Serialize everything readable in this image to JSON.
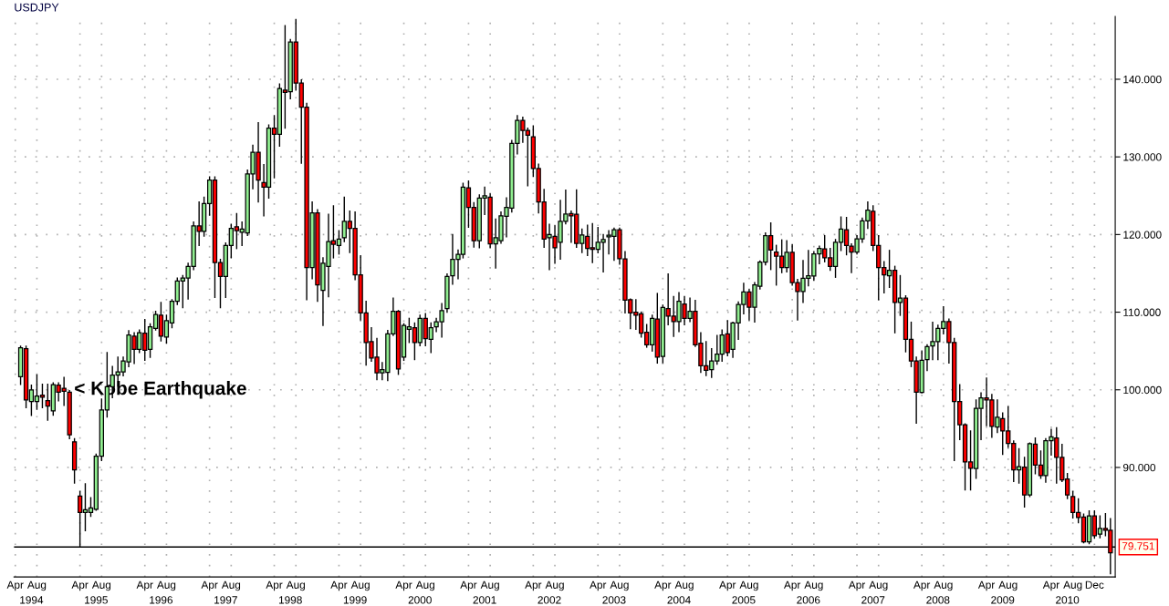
{
  "chart_data": {
    "type": "candlestick",
    "title": "USDJPY",
    "xlim": [
      "1994-03-25",
      "2011-03-28"
    ],
    "x2lim": [
      "1994-03-25",
      "2011-03-28"
    ],
    "ylim": [
      75.9,
      148.1
    ],
    "yticks": [
      {
        "value": 90,
        "label": "90.000"
      },
      {
        "value": 100,
        "label": "100.000"
      },
      {
        "value": 110,
        "label": "110.000"
      },
      {
        "value": 120,
        "label": "120.000"
      },
      {
        "value": 130,
        "label": "130.000"
      },
      {
        "value": 140,
        "label": "140.000"
      }
    ],
    "xticks": [
      {
        "value": "1994-04",
        "label": "Apr"
      },
      {
        "value": "1994-08",
        "label": "Aug"
      },
      {
        "value": "1995-04",
        "label": "Apr"
      },
      {
        "value": "1995-08",
        "label": "Aug"
      },
      {
        "value": "1996-04",
        "label": "Apr"
      },
      {
        "value": "1996-08",
        "label": "Aug"
      },
      {
        "value": "1997-04",
        "label": "Apr"
      },
      {
        "value": "1997-08",
        "label": "Aug"
      },
      {
        "value": "1998-04",
        "label": "Apr"
      },
      {
        "value": "1998-08",
        "label": "Aug"
      },
      {
        "value": "1999-04",
        "label": "Apr"
      },
      {
        "value": "1999-08",
        "label": "Aug"
      },
      {
        "value": "2000-04",
        "label": "Apr"
      },
      {
        "value": "2000-08",
        "label": "Aug"
      },
      {
        "value": "2001-04",
        "label": "Apr"
      },
      {
        "value": "2001-08",
        "label": "Aug"
      },
      {
        "value": "2002-04",
        "label": "Apr"
      },
      {
        "value": "2002-08",
        "label": "Aug"
      },
      {
        "value": "2003-04",
        "label": "Apr"
      },
      {
        "value": "2003-08",
        "label": "Aug"
      },
      {
        "value": "2004-04",
        "label": "Apr"
      },
      {
        "value": "2004-08",
        "label": "Aug"
      },
      {
        "value": "2005-04",
        "label": "Apr"
      },
      {
        "value": "2005-08",
        "label": "Aug"
      },
      {
        "value": "2006-04",
        "label": "Apr"
      },
      {
        "value": "2006-08",
        "label": "Aug"
      },
      {
        "value": "2007-04",
        "label": "Apr"
      },
      {
        "value": "2007-08",
        "label": "Aug"
      },
      {
        "value": "2008-04",
        "label": "Apr"
      },
      {
        "value": "2008-08",
        "label": "Aug"
      },
      {
        "value": "2009-04",
        "label": "Apr"
      },
      {
        "value": "2009-08",
        "label": "Aug"
      },
      {
        "value": "2010-04",
        "label": "Apr"
      },
      {
        "value": "2010-08",
        "label": "Aug"
      },
      {
        "value": "2010-12",
        "label": "Dec"
      }
    ],
    "x2ticks": [
      {
        "value": "1994-07",
        "label": "1994"
      },
      {
        "value": "1995-07",
        "label": "1995"
      },
      {
        "value": "1996-07",
        "label": "1996"
      },
      {
        "value": "1997-07",
        "label": "1997"
      },
      {
        "value": "1998-07",
        "label": "1998"
      },
      {
        "value": "1999-07",
        "label": "1999"
      },
      {
        "value": "2000-07",
        "label": "2000"
      },
      {
        "value": "2001-07",
        "label": "2001"
      },
      {
        "value": "2002-07",
        "label": "2002"
      },
      {
        "value": "2003-07",
        "label": "2003"
      },
      {
        "value": "2004-07",
        "label": "2004"
      },
      {
        "value": "2005-07",
        "label": "2005"
      },
      {
        "value": "2006-07",
        "label": "2006"
      },
      {
        "value": "2007-07",
        "label": "2007"
      },
      {
        "value": "2008-07",
        "label": "2008"
      },
      {
        "value": "2009-07",
        "label": "2009"
      },
      {
        "value": "2010-07",
        "label": "2010"
      }
    ],
    "grid": true,
    "ref_lines": [
      {
        "axis": "y",
        "value": 79.751,
        "label": "79.751",
        "color": "#000000"
      }
    ],
    "annotations": [
      {
        "text": "< Kobe Earthquake",
        "x": "1995-01",
        "y": 100
      }
    ],
    "series": [
      {
        "color": "#90ee90",
        "x": [
          "1994-05",
          "1994-07",
          "1994-08",
          "1994-11",
          "1995-05",
          "1995-06",
          "1995-07",
          "1995-08",
          "1995-09",
          "1995-10",
          "1995-11",
          "1995-12",
          "1996-01",
          "1996-03",
          "1996-05",
          "1996-06",
          "1996-08",
          "1996-09",
          "1996-10",
          "1996-11",
          "1996-12",
          "1997-01",
          "1997-03",
          "1997-04",
          "1997-07",
          "1997-08",
          "1997-10",
          "1997-11",
          "1997-12",
          "1998-03",
          "1998-05",
          "1998-07",
          "1998-11",
          "1999-01",
          "1999-02",
          "1999-04",
          "1999-05",
          "1999-12",
          "2000-01",
          "2000-02",
          "2000-04",
          "2000-05",
          "2000-07",
          "2000-09",
          "2000-10",
          "2000-11",
          "2000-12",
          "2001-01",
          "2001-02",
          "2001-03",
          "2001-06",
          "2001-07",
          "2001-09",
          "2001-10",
          "2001-11",
          "2001-12",
          "2002-01",
          "2002-07",
          "2002-09",
          "2002-10",
          "2003-01",
          "2003-04",
          "2003-05",
          "2003-06",
          "2003-07",
          "2004-02",
          "2004-04",
          "2004-07",
          "2004-09",
          "2005-01",
          "2005-02",
          "2005-03",
          "2005-05",
          "2005-06",
          "2005-07",
          "2005-09",
          "2005-10",
          "2005-11",
          "2006-03",
          "2006-06",
          "2006-07",
          "2006-08",
          "2006-09",
          "2006-12",
          "2007-01",
          "2007-04",
          "2007-05",
          "2007-06",
          "2007-10",
          "2007-12",
          "2008-04",
          "2008-05",
          "2008-06",
          "2008-07",
          "2008-08",
          "2009-02",
          "2009-03",
          "2009-06",
          "2009-10",
          "2009-12",
          "2010-03",
          "2010-04",
          "2010-11",
          "2011-01"
        ],
        "ohlc": [
          [
            101.7,
            105.6,
            100.7,
            105.4
          ],
          [
            98.5,
            100.6,
            96.7,
            100.0
          ],
          [
            98.5,
            101.9,
            97.5,
            99.2
          ],
          [
            97.3,
            100.9,
            96.75,
            100.65
          ],
          [
            84.2,
            87.9,
            81.85,
            84.55
          ],
          [
            84.2,
            86.1,
            83.7,
            84.8
          ],
          [
            84.6,
            91.7,
            84.5,
            91.45
          ],
          [
            91.45,
            98.8,
            90.9,
            97.4
          ],
          [
            97.4,
            104.8,
            96.5,
            100.4
          ],
          [
            100.4,
            103.0,
            99.0,
            101.9
          ],
          [
            101.9,
            104.2,
            100.5,
            102.3
          ],
          [
            102.3,
            104.2,
            101.8,
            103.7
          ],
          [
            103.6,
            107.6,
            103.0,
            107.05
          ],
          [
            105.2,
            107.7,
            104.8,
            107.35
          ],
          [
            105.2,
            108.5,
            104.2,
            108.1
          ],
          [
            107.9,
            110.1,
            107.7,
            109.7
          ],
          [
            106.8,
            109.6,
            106.0,
            108.9
          ],
          [
            108.6,
            111.6,
            108.0,
            111.4
          ],
          [
            111.4,
            114.4,
            111.0,
            114.0
          ],
          [
            114.0,
            114.7,
            110.6,
            114.4
          ],
          [
            114.4,
            116.3,
            111.7,
            115.9
          ],
          [
            115.9,
            121.6,
            115.5,
            121.1
          ],
          [
            120.4,
            124.8,
            119.8,
            124.0
          ],
          [
            124.0,
            127.4,
            122.5,
            127.0
          ],
          [
            114.6,
            118.9,
            111.9,
            118.6
          ],
          [
            118.6,
            121.3,
            117.0,
            120.8
          ],
          [
            120.3,
            121.6,
            118.6,
            120.7
          ],
          [
            120.2,
            128.3,
            119.9,
            127.8
          ],
          [
            127.8,
            131.5,
            125.9,
            130.6
          ],
          [
            126.1,
            134.1,
            124.7,
            133.7
          ],
          [
            132.9,
            139.4,
            131.4,
            138.8
          ],
          [
            138.4,
            145.1,
            137.5,
            144.8
          ],
          [
            115.75,
            124.2,
            114.3,
            122.8
          ],
          [
            112.8,
            117.0,
            108.3,
            116.3
          ],
          [
            115.9,
            122.6,
            112.0,
            119.1
          ],
          [
            118.6,
            120.5,
            117.5,
            119.4
          ],
          [
            119.6,
            124.8,
            119.1,
            121.7
          ],
          [
            102.2,
            103.5,
            101.3,
            102.6
          ],
          [
            102.25,
            107.65,
            101.2,
            107.2
          ],
          [
            107.2,
            111.8,
            107.0,
            110.1
          ],
          [
            104.2,
            108.5,
            103.8,
            108.3
          ],
          [
            107.8,
            109.2,
            106.1,
            108.1
          ],
          [
            106.1,
            109.6,
            105.7,
            109.2
          ],
          [
            106.5,
            108.6,
            104.8,
            108.0
          ],
          [
            108.1,
            109.2,
            107.5,
            108.75
          ],
          [
            108.75,
            111.1,
            106.8,
            110.2
          ],
          [
            110.45,
            114.9,
            110.0,
            114.6
          ],
          [
            114.7,
            120.0,
            113.6,
            116.8
          ],
          [
            116.8,
            118.0,
            114.3,
            117.45
          ],
          [
            117.45,
            126.6,
            117.0,
            126.1
          ],
          [
            119.2,
            125.1,
            118.3,
            124.7
          ],
          [
            124.7,
            126.1,
            122.6,
            125.0
          ],
          [
            118.8,
            122.0,
            115.7,
            119.6
          ],
          [
            119.2,
            122.9,
            118.9,
            122.4
          ],
          [
            122.35,
            124.7,
            119.7,
            123.5
          ],
          [
            123.4,
            132.1,
            122.9,
            131.75
          ],
          [
            131.75,
            135.3,
            130.4,
            134.7
          ],
          [
            119.6,
            121.3,
            115.5,
            120.0
          ],
          [
            119.0,
            124.4,
            116.85,
            121.7
          ],
          [
            121.7,
            125.7,
            121.4,
            122.65
          ],
          [
            118.85,
            120.7,
            117.7,
            119.95
          ],
          [
            118.1,
            120.9,
            117.65,
            119.0
          ],
          [
            119.0,
            120.0,
            115.2,
            119.35
          ],
          [
            119.7,
            120.5,
            117.5,
            119.9
          ],
          [
            119.75,
            120.8,
            116.7,
            120.6
          ],
          [
            105.8,
            109.6,
            105.0,
            109.2
          ],
          [
            104.3,
            110.9,
            103.5,
            110.6
          ],
          [
            108.8,
            112.5,
            107.5,
            111.4
          ],
          [
            109.2,
            111.8,
            108.8,
            110.1
          ],
          [
            102.6,
            105.3,
            101.6,
            103.7
          ],
          [
            103.7,
            107.0,
            103.3,
            104.6
          ],
          [
            104.6,
            107.7,
            103.7,
            107.05
          ],
          [
            105.2,
            108.7,
            104.2,
            108.6
          ],
          [
            108.6,
            111.3,
            106.5,
            111.0
          ],
          [
            111.0,
            113.7,
            109.8,
            112.6
          ],
          [
            110.65,
            113.8,
            108.75,
            113.5
          ],
          [
            113.35,
            116.6,
            113.0,
            116.45
          ],
          [
            116.45,
            120.2,
            116.1,
            119.85
          ],
          [
            115.75,
            119.2,
            115.2,
            117.7
          ],
          [
            112.65,
            116.65,
            111.25,
            114.35
          ],
          [
            114.35,
            117.95,
            113.4,
            114.7
          ],
          [
            114.65,
            117.8,
            114.1,
            117.5
          ],
          [
            117.5,
            118.5,
            116.25,
            118.2
          ],
          [
            115.9,
            119.35,
            114.5,
            119.0
          ],
          [
            119.0,
            122.25,
            117.95,
            120.7
          ],
          [
            117.75,
            119.85,
            117.5,
            119.45
          ],
          [
            119.45,
            122.1,
            119.0,
            121.75
          ],
          [
            121.75,
            124.2,
            120.8,
            123.15
          ],
          [
            114.7,
            117.95,
            113.2,
            115.4
          ],
          [
            111.25,
            114.7,
            109.6,
            111.8
          ],
          [
            99.65,
            105.0,
            99.6,
            103.8
          ],
          [
            103.9,
            105.8,
            102.5,
            105.55
          ],
          [
            105.65,
            108.7,
            103.9,
            106.2
          ],
          [
            106.2,
            108.3,
            103.9,
            107.9
          ],
          [
            107.9,
            110.7,
            107.2,
            108.8
          ],
          [
            89.85,
            98.7,
            88.6,
            97.6
          ],
          [
            97.6,
            99.6,
            93.6,
            98.95
          ],
          [
            95.2,
            98.7,
            94.5,
            96.45
          ],
          [
            89.7,
            92.4,
            88.0,
            90.1
          ],
          [
            86.45,
            93.15,
            86.25,
            93.05
          ],
          [
            88.95,
            93.7,
            88.1,
            93.45
          ],
          [
            93.45,
            94.9,
            91.6,
            93.95
          ],
          [
            80.4,
            84.4,
            80.2,
            83.75
          ],
          [
            81.4,
            83.75,
            80.95,
            82.15
          ]
        ]
      },
      {
        "color": "#ff0000",
        "x": [
          "1994-06",
          "1994-09",
          "1994-10",
          "1994-12",
          "1995-01",
          "1995-02",
          "1995-03",
          "1995-04",
          "1996-02",
          "1996-04",
          "1996-07",
          "1997-02",
          "1997-05",
          "1997-06",
          "1997-09",
          "1998-01",
          "1998-02",
          "1998-04",
          "1998-06",
          "1998-08",
          "1998-09",
          "1998-10",
          "1998-12",
          "1999-03",
          "1999-06",
          "1999-07",
          "1999-08",
          "1999-09",
          "1999-10",
          "1999-11",
          "2000-03",
          "2000-06",
          "2000-08",
          "2001-04",
          "2001-05",
          "2001-08",
          "2002-02",
          "2002-03",
          "2002-04",
          "2002-05",
          "2002-06",
          "2002-08",
          "2002-11",
          "2002-12",
          "2003-02",
          "2003-03",
          "2003-08",
          "2003-09",
          "2003-10",
          "2003-11",
          "2003-12",
          "2004-01",
          "2004-03",
          "2004-05",
          "2004-06",
          "2004-08",
          "2004-10",
          "2004-11",
          "2004-12",
          "2005-04",
          "2005-08",
          "2005-12",
          "2006-01",
          "2006-02",
          "2006-04",
          "2006-05",
          "2006-10",
          "2006-11",
          "2007-02",
          "2007-03",
          "2007-07",
          "2007-08",
          "2007-09",
          "2007-11",
          "2008-01",
          "2008-02",
          "2008-03",
          "2008-09",
          "2008-10",
          "2008-11",
          "2008-12",
          "2009-01",
          "2009-04",
          "2009-05",
          "2009-07",
          "2009-08",
          "2009-09",
          "2009-11",
          "2010-01",
          "2010-02",
          "2010-05",
          "2010-06",
          "2010-07",
          "2010-08",
          "2010-09",
          "2010-10",
          "2010-12",
          "2011-02",
          "2011-03"
        ],
        "ohlc": [
          [
            105.3,
            105.6,
            97.7,
            98.7
          ],
          [
            99.3,
            100.7,
            97.7,
            99.05
          ],
          [
            98.6,
            100.7,
            96.1,
            97.9
          ],
          [
            100.6,
            100.9,
            98.6,
            99.7
          ],
          [
            100.2,
            101.6,
            98.0,
            99.8
          ],
          [
            99.7,
            99.9,
            93.7,
            94.2
          ],
          [
            93.3,
            93.7,
            88.0,
            89.7
          ],
          [
            86.3,
            86.9,
            79.75,
            84.2
          ],
          [
            106.9,
            107.35,
            103.4,
            105.2
          ],
          [
            107.3,
            109.05,
            103.8,
            105.1
          ],
          [
            109.6,
            111.25,
            106.3,
            106.9
          ],
          [
            121.1,
            124.2,
            118.6,
            120.4
          ],
          [
            127.0,
            127.4,
            111.9,
            116.4
          ],
          [
            116.4,
            116.8,
            110.6,
            114.6
          ],
          [
            121.0,
            122.7,
            118.2,
            120.5
          ],
          [
            130.6,
            134.4,
            124.2,
            127.0
          ],
          [
            126.7,
            129.0,
            122.4,
            126.1
          ],
          [
            133.7,
            135.3,
            127.3,
            132.9
          ],
          [
            138.6,
            146.9,
            133.7,
            138.3
          ],
          [
            144.8,
            147.7,
            138.6,
            139.5
          ],
          [
            139.5,
            139.9,
            129.2,
            136.4
          ],
          [
            136.4,
            136.9,
            111.6,
            115.75
          ],
          [
            122.8,
            123.2,
            111.4,
            113.5
          ],
          [
            119.2,
            123.7,
            117.0,
            118.75
          ],
          [
            121.7,
            123.0,
            117.7,
            120.8
          ],
          [
            120.8,
            122.9,
            114.2,
            114.8
          ],
          [
            114.8,
            117.25,
            109.0,
            109.9
          ],
          [
            109.9,
            111.4,
            103.2,
            106.1
          ],
          [
            106.2,
            108.0,
            103.7,
            104.1
          ],
          [
            104.2,
            106.6,
            101.3,
            102.2
          ],
          [
            110.1,
            110.2,
            102.0,
            102.7
          ],
          [
            108.0,
            108.6,
            103.9,
            106.1
          ],
          [
            109.2,
            109.8,
            105.7,
            106.6
          ],
          [
            126.0,
            126.9,
            120.95,
            123.5
          ],
          [
            123.5,
            124.1,
            118.4,
            119.2
          ],
          [
            124.8,
            125.2,
            118.3,
            118.8
          ],
          [
            134.7,
            135.1,
            131.9,
            133.4
          ],
          [
            133.4,
            133.7,
            126.3,
            132.8
          ],
          [
            132.6,
            134.0,
            127.5,
            128.5
          ],
          [
            128.5,
            129.05,
            122.8,
            124.2
          ],
          [
            124.2,
            125.8,
            118.35,
            119.4
          ],
          [
            119.75,
            121.1,
            116.3,
            118.3
          ],
          [
            122.7,
            123.0,
            119.0,
            122.4
          ],
          [
            122.6,
            125.75,
            118.35,
            118.85
          ],
          [
            119.75,
            121.2,
            117.3,
            118.2
          ],
          [
            118.3,
            121.4,
            116.4,
            118.1
          ],
          [
            120.6,
            120.8,
            116.2,
            116.9
          ],
          [
            116.85,
            117.8,
            109.9,
            111.55
          ],
          [
            111.6,
            111.7,
            107.9,
            109.9
          ],
          [
            110.0,
            111.6,
            107.8,
            109.6
          ],
          [
            109.8,
            110.0,
            106.8,
            107.3
          ],
          [
            107.4,
            108.4,
            105.5,
            105.8
          ],
          [
            109.1,
            112.4,
            103.45,
            104.2
          ],
          [
            110.45,
            114.9,
            108.4,
            109.5
          ],
          [
            109.5,
            112.0,
            106.9,
            108.8
          ],
          [
            111.05,
            112.0,
            108.4,
            109.2
          ],
          [
            110.1,
            111.5,
            105.6,
            105.8
          ],
          [
            106.0,
            107.35,
            102.25,
            103.1
          ],
          [
            103.1,
            106.2,
            101.85,
            102.5
          ],
          [
            107.2,
            108.9,
            104.4,
            104.8
          ],
          [
            112.6,
            112.9,
            109.0,
            110.65
          ],
          [
            119.85,
            121.5,
            115.5,
            118.0
          ],
          [
            117.75,
            118.6,
            113.5,
            117.2
          ],
          [
            117.2,
            119.3,
            115.1,
            115.75
          ],
          [
            117.7,
            118.7,
            113.5,
            113.8
          ],
          [
            113.8,
            114.2,
            109.0,
            112.65
          ],
          [
            118.15,
            119.85,
            116.5,
            117.0
          ],
          [
            117.0,
            118.2,
            115.4,
            115.9
          ],
          [
            120.6,
            122.2,
            117.4,
            118.6
          ],
          [
            118.5,
            118.8,
            115.1,
            117.75
          ],
          [
            123.0,
            123.7,
            117.95,
            118.6
          ],
          [
            118.6,
            119.85,
            111.6,
            115.75
          ],
          [
            115.75,
            116.5,
            112.5,
            114.8
          ],
          [
            115.4,
            115.9,
            107.35,
            111.25
          ],
          [
            111.8,
            112.1,
            104.9,
            106.5
          ],
          [
            106.5,
            108.7,
            103.0,
            103.7
          ],
          [
            103.7,
            104.2,
            95.7,
            99.7
          ],
          [
            108.8,
            109.1,
            103.45,
            106.1
          ],
          [
            106.1,
            106.6,
            90.9,
            98.5
          ],
          [
            98.5,
            100.65,
            93.6,
            95.5
          ],
          [
            95.5,
            95.6,
            87.1,
            90.7
          ],
          [
            90.7,
            94.7,
            87.1,
            89.9
          ],
          [
            98.95,
            101.5,
            95.4,
            98.7
          ],
          [
            98.7,
            99.4,
            93.9,
            95.3
          ],
          [
            96.3,
            97.0,
            91.7,
            94.7
          ],
          [
            94.7,
            97.8,
            92.6,
            93.1
          ],
          [
            93.1,
            93.4,
            88.2,
            89.7
          ],
          [
            90.05,
            91.3,
            84.9,
            86.45
          ],
          [
            93.0,
            93.8,
            89.2,
            90.3
          ],
          [
            90.3,
            92.1,
            88.6,
            88.95
          ],
          [
            93.8,
            95.1,
            88.0,
            91.3
          ],
          [
            91.3,
            92.95,
            88.2,
            88.4
          ],
          [
            88.5,
            89.2,
            86.0,
            86.45
          ],
          [
            86.25,
            86.9,
            83.5,
            84.2
          ],
          [
            84.2,
            85.95,
            82.9,
            83.55
          ],
          [
            83.6,
            84.0,
            80.3,
            80.4
          ],
          [
            83.75,
            84.4,
            80.9,
            81.2
          ],
          [
            82.15,
            84.05,
            81.2,
            81.9
          ],
          [
            81.9,
            83.4,
            76.3,
            79.0
          ]
        ]
      }
    ]
  }
}
